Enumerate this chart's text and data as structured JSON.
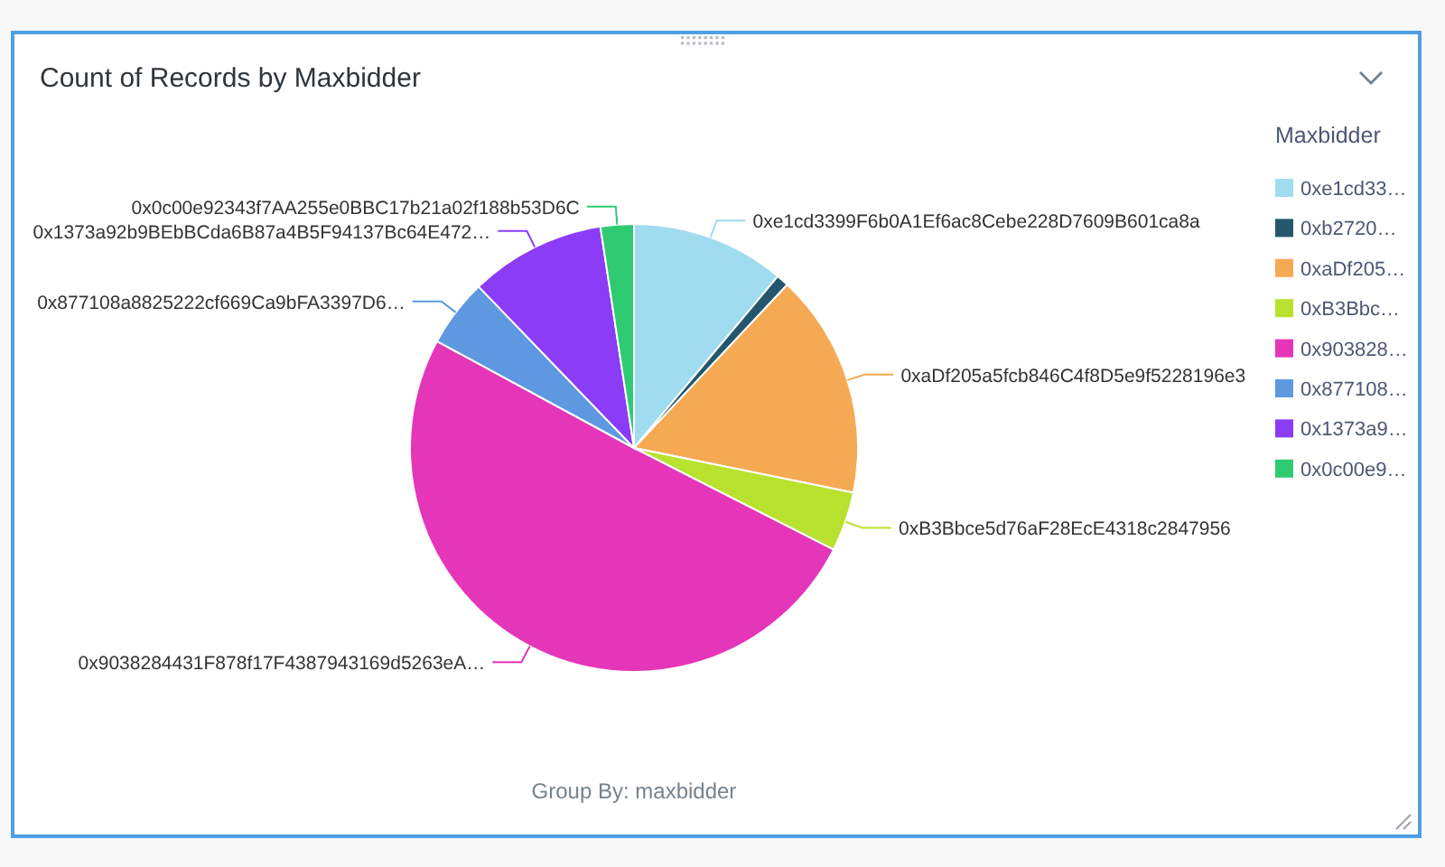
{
  "chart_data": {
    "type": "pie",
    "title": "Count of Records by Maxbidder",
    "xlabel": "Group By: maxbidder",
    "legend_title": "Maxbidder",
    "legend": "right",
    "categories": [
      "0xe1cd33…",
      "0xb2720…",
      "0xaDf205…",
      "0xB3Bbc…",
      "0x903828…",
      "0x877108…",
      "0x1373a9…",
      "0x0c00e9…"
    ],
    "values": [
      11.1,
      0.9,
      16.2,
      4.3,
      50.4,
      4.9,
      9.8,
      2.4
    ],
    "colors": [
      "#9fdcf0",
      "#24566e",
      "#f5a953",
      "#b9e22f",
      "#e535b9",
      "#5e98e0",
      "#8a3cf6",
      "#2fcb73"
    ],
    "annotations": [
      {
        "text": "0xe1cd3399F6b0A1Ef6ac8Cebe228D7609B601ca8a",
        "x": "0xe1cd33…"
      },
      {
        "text": "0xaDf205a5fcb846C4f8D5e9f5228196e3",
        "x": "0xaDf205…"
      },
      {
        "text": "0xB3Bbce5d76aF28EcE4318c2847956",
        "x": "0xB3Bbc…"
      },
      {
        "text": "0x9038284431F878f17F4387943169d5263eA…",
        "x": "0x903828…"
      },
      {
        "text": "0x877108a8825222cf669Ca9bFA3397D6…",
        "x": "0x877108…"
      },
      {
        "text": "0x1373a92b9BEbBCda6B87a4B5F94137Bc64E472…",
        "x": "0x1373a9…"
      },
      {
        "text": "0x0c00e92343f7AA255e0BBC17b21a02f188b53D6C",
        "x": "0x0c00e9…"
      }
    ]
  }
}
